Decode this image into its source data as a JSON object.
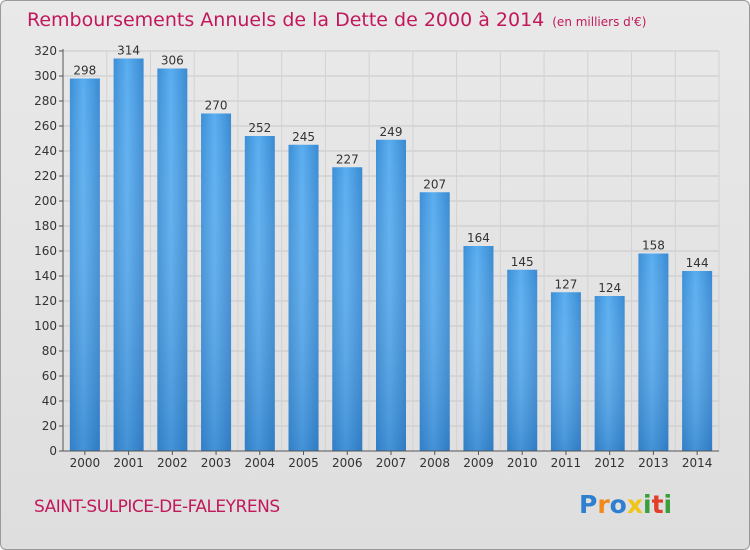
{
  "chart_data": {
    "type": "bar",
    "title": "Remboursements Annuels de la Dette de 2000 à 2014",
    "unit_note": "(en milliers d'€)",
    "categories": [
      "2000",
      "2001",
      "2002",
      "2003",
      "2004",
      "2005",
      "2006",
      "2007",
      "2008",
      "2009",
      "2010",
      "2011",
      "2012",
      "2013",
      "2014"
    ],
    "values": [
      298,
      314,
      306,
      270,
      252,
      245,
      227,
      249,
      207,
      164,
      145,
      127,
      124,
      158,
      144
    ],
    "ylim": [
      0,
      320
    ],
    "yticks": [
      0,
      20,
      40,
      60,
      80,
      100,
      120,
      140,
      160,
      180,
      200,
      220,
      240,
      260,
      280,
      300,
      320
    ],
    "grid": true,
    "legend": "none",
    "bar_color": "#4a9fe0"
  },
  "commune": "SAINT-SULPICE-DE-FALEYRENS",
  "logo": {
    "letters": [
      "P",
      "r",
      "o",
      "x",
      "i",
      "t",
      "i"
    ],
    "colors": [
      "#2f7fd0",
      "#f08a1c",
      "#2f7fd0",
      "#f0c419",
      "#3a9e3a",
      "#e0402a",
      "#3a9e3a"
    ]
  }
}
